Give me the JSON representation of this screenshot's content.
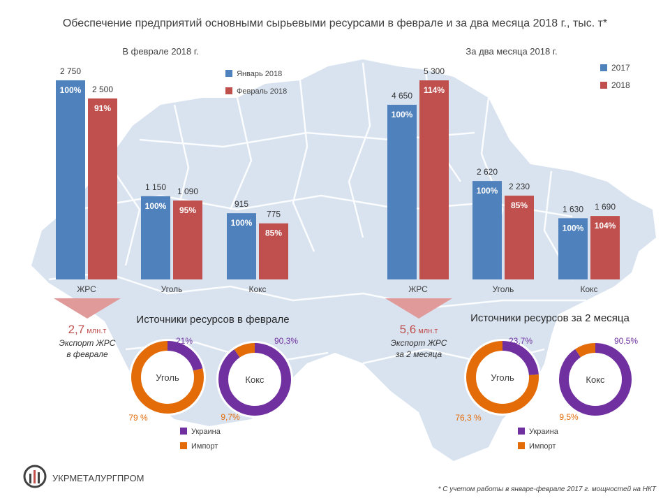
{
  "title": "Обеспечение предприятий основными сырьевыми ресурсами в феврале и за два месяца 2018 г., тыс. т*",
  "colors": {
    "blue": "#4f81bd",
    "red": "#c0504d",
    "purple": "#7030a0",
    "orange": "#e36c09",
    "arrow": "#e09a9a",
    "map": "#d9e3f0"
  },
  "chart_data": [
    {
      "type": "bar",
      "title": "В феврале 2018 г.",
      "categories": [
        "ЖРС",
        "Уголь",
        "Кокс"
      ],
      "series": [
        {
          "name": "Январь 2018",
          "values": [
            2750,
            1150,
            915
          ],
          "value_labels": [
            "2 750",
            "1 150",
            "915"
          ],
          "pct": [
            "100%",
            "100%",
            "100%"
          ]
        },
        {
          "name": "Февраль 2018",
          "values": [
            2500,
            1090,
            775
          ],
          "value_labels": [
            "2 500",
            "1 090",
            "775"
          ],
          "pct": [
            "91%",
            "95%",
            "85%"
          ]
        }
      ]
    },
    {
      "type": "bar",
      "title": "За два месяца 2018 г.",
      "categories": [
        "ЖРС",
        "Уголь",
        "Кокс"
      ],
      "series": [
        {
          "name": "2017",
          "values": [
            4650,
            2620,
            1630
          ],
          "value_labels": [
            "4 650",
            "2 620",
            "1 630"
          ],
          "pct": [
            "100%",
            "100%",
            "100%"
          ]
        },
        {
          "name": "2018",
          "values": [
            5300,
            2230,
            1690
          ],
          "value_labels": [
            "5 300",
            "2 230",
            "1 690"
          ],
          "pct": [
            "114%",
            "85%",
            "104%"
          ]
        }
      ]
    },
    {
      "type": "pie",
      "title": "Источники ресурсов в феврале",
      "charts": [
        {
          "name": "Уголь",
          "slices": [
            {
              "name": "Украина",
              "value": 21,
              "label": "21%"
            },
            {
              "name": "Импорт",
              "value": 79,
              "label": "79 %"
            }
          ]
        },
        {
          "name": "Кокс",
          "slices": [
            {
              "name": "Украина",
              "value": 90.3,
              "label": "90,3%"
            },
            {
              "name": "Импорт",
              "value": 9.7,
              "label": "9,7%"
            }
          ]
        }
      ],
      "legend": [
        "Украина",
        "Импорт"
      ]
    },
    {
      "type": "pie",
      "title": "Источники ресурсов за 2 месяца",
      "charts": [
        {
          "name": "Уголь",
          "slices": [
            {
              "name": "Украина",
              "value": 23.7,
              "label": "23,7%"
            },
            {
              "name": "Импорт",
              "value": 76.3,
              "label": "76,3 %"
            }
          ]
        },
        {
          "name": "Кокс",
          "slices": [
            {
              "name": "Украина",
              "value": 90.5,
              "label": "90,5%"
            },
            {
              "name": "Импорт",
              "value": 9.5,
              "label": "9,5%"
            }
          ]
        }
      ],
      "legend": [
        "Украина",
        "Импорт"
      ]
    }
  ],
  "exports": [
    {
      "value": "2,7",
      "unit": "млн.т",
      "line1": "Экспорт ЖРС",
      "line2": "в феврале"
    },
    {
      "value": "5,6",
      "unit": "млн.т",
      "line1": "Экспорт ЖРС",
      "line2": "за 2 месяца"
    }
  ],
  "logo": {
    "text": "УКРМЕТАЛУРГПРОМ"
  },
  "footnote": "* С учетом работы в январе-феврале  2017  г. мощностей  на  НКТ"
}
